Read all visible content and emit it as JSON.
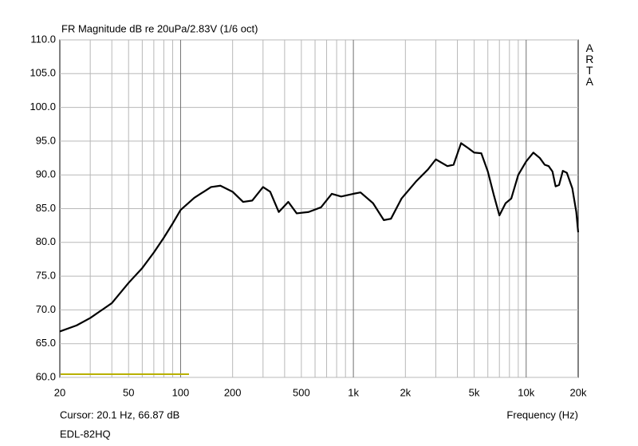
{
  "chart_data": {
    "type": "line",
    "title": "FR Magnitude dB re 20uPa/2.83V (1/6 oct)",
    "watermark": "ARTA",
    "cursor_readout": "Cursor: 20.1 Hz, 66.87 dB",
    "device": "EDL-82HQ",
    "x_label": "Frequency (Hz)",
    "x_scale": "log",
    "grid": true,
    "xlim": [
      20,
      20000
    ],
    "xticks": [
      20,
      50,
      100,
      200,
      500,
      {
        "value": 1000,
        "label": "1k"
      },
      {
        "value": 2000,
        "label": "2k"
      },
      {
        "value": 5000,
        "label": "5k"
      },
      {
        "value": 10000,
        "label": "10k"
      },
      {
        "value": 20000,
        "label": "20k"
      }
    ],
    "ylim": [
      60,
      110
    ],
    "yticks": [
      {
        "value": 60,
        "label": "60.0"
      },
      {
        "value": 65,
        "label": "65.0"
      },
      {
        "value": 70,
        "label": "70.0"
      },
      {
        "value": 75,
        "label": "75.0"
      },
      {
        "value": 80,
        "label": "80.0"
      },
      {
        "value": 85,
        "label": "85.0"
      },
      {
        "value": 90,
        "label": "90.0"
      },
      {
        "value": 95,
        "label": "95.0"
      },
      {
        "value": 100,
        "label": "100.0"
      },
      {
        "value": 105,
        "label": "105.0"
      },
      {
        "value": 110,
        "label": "110.0"
      }
    ],
    "x": [
      20,
      25,
      30,
      40,
      50,
      60,
      70,
      80,
      90,
      100,
      120,
      150,
      170,
      200,
      230,
      260,
      300,
      330,
      370,
      420,
      470,
      550,
      650,
      750,
      850,
      1000,
      1100,
      1300,
      1500,
      1650,
      1900,
      2300,
      2700,
      3000,
      3500,
      3800,
      4200,
      4600,
      5000,
      5500,
      6000,
      6500,
      7000,
      7600,
      8200,
      9000,
      10000,
      11000,
      12000,
      12800,
      13500,
      14200,
      14800,
      15500,
      16300,
      17200,
      18500,
      19500,
      20000
    ],
    "series": [
      {
        "color": "#000000",
        "values": [
          66.8,
          67.7,
          68.8,
          71.0,
          74.0,
          76.2,
          78.5,
          80.7,
          82.8,
          84.8,
          86.6,
          88.2,
          88.4,
          87.5,
          86.0,
          86.2,
          88.2,
          87.5,
          84.5,
          86.0,
          84.3,
          84.5,
          85.2,
          87.2,
          86.8,
          87.2,
          87.4,
          85.8,
          83.3,
          83.5,
          86.5,
          89.0,
          90.8,
          92.3,
          91.3,
          91.5,
          94.7,
          94.0,
          93.3,
          93.2,
          90.5,
          87.0,
          84.0,
          85.8,
          86.5,
          90.0,
          92.0,
          93.3,
          92.5,
          91.5,
          91.3,
          90.5,
          88.3,
          88.5,
          90.6,
          90.3,
          88.0,
          84.5,
          81.5
        ]
      }
    ]
  }
}
